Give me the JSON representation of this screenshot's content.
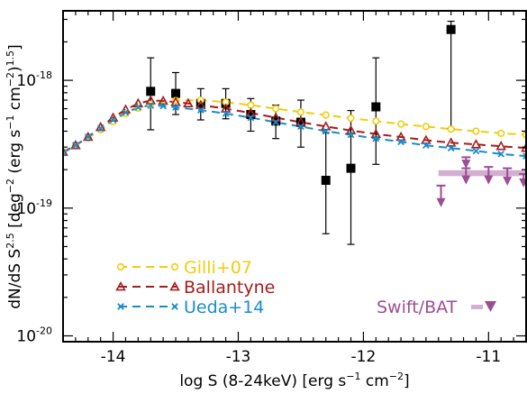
{
  "chart_data": {
    "type": "scatter",
    "xlabel_parts": [
      "log S (8-24keV) [erg s",
      "−1",
      " cm",
      "−2",
      "]"
    ],
    "ylabel_parts": [
      "dN/dS S",
      "2.5",
      " [deg",
      "−2",
      " (erg s",
      "−1",
      " cm",
      "−2",
      ")",
      "1.5",
      "]"
    ],
    "xlim": [
      -14.4,
      -10.7
    ],
    "ylim": [
      9e-21,
      3.5e-18
    ],
    "yscale": "log",
    "x_ticks": [
      -14,
      -13,
      -12,
      -11
    ],
    "x_tick_labels": [
      "-14",
      "-13",
      "-12",
      "-11"
    ],
    "y_tick_labels": [
      {
        "value": 1e-18,
        "base": "10",
        "exp": "-18"
      },
      {
        "value": 1e-19,
        "base": "10",
        "exp": "-19"
      },
      {
        "value": 1e-20,
        "base": "10",
        "exp": "-20"
      }
    ],
    "series": [
      {
        "name": "Gilli+07",
        "color": "#f2cc0c",
        "marker": "circle",
        "x": [
          -14.4,
          -14.3,
          -14.2,
          -14.1,
          -14.0,
          -13.9,
          -13.8,
          -13.7,
          -13.5,
          -13.3,
          -13.1,
          -12.9,
          -12.7,
          -12.5,
          -12.3,
          -12.1,
          -11.9,
          -11.7,
          -11.5,
          -11.3,
          -11.1,
          -10.9,
          -10.7
        ],
        "y": [
          2.75e-19,
          3.1e-19,
          3.55e-19,
          4.1e-19,
          4.75e-19,
          5.5e-19,
          6.05e-19,
          6.5e-19,
          6.95e-19,
          7e-19,
          6.75e-19,
          6.4e-19,
          6e-19,
          5.65e-19,
          5.35e-19,
          5.05e-19,
          4.8e-19,
          4.55e-19,
          4.35e-19,
          4.15e-19,
          4e-19,
          3.85e-19,
          3.75e-19
        ]
      },
      {
        "name": "Ballantyne",
        "color": "#a61c1c",
        "marker": "triangle",
        "x": [
          -14.4,
          -14.3,
          -14.2,
          -14.1,
          -14.0,
          -13.9,
          -13.8,
          -13.7,
          -13.6,
          -13.5,
          -13.4,
          -13.3,
          -13.1,
          -12.9,
          -12.7,
          -12.5,
          -12.3,
          -12.1,
          -11.9,
          -11.7,
          -11.5,
          -11.3,
          -11.1,
          -10.9,
          -10.7
        ],
        "y": [
          2.75e-19,
          3.1e-19,
          3.6e-19,
          4.3e-19,
          5.1e-19,
          5.9e-19,
          6.6e-19,
          6.95e-19,
          6.9e-19,
          6.75e-19,
          6.6e-19,
          6.4e-19,
          6e-19,
          5.55e-19,
          5.1e-19,
          4.7e-19,
          4.35e-19,
          4.05e-19,
          3.8e-19,
          3.6e-19,
          3.4e-19,
          3.25e-19,
          3.15e-19,
          3.05e-19,
          2.95e-19
        ]
      },
      {
        "name": "Ueda+14",
        "color": "#1a8ccc",
        "marker": "cross",
        "x": [
          -14.4,
          -14.3,
          -14.2,
          -14.1,
          -14.0,
          -13.9,
          -13.8,
          -13.7,
          -13.6,
          -13.5,
          -13.3,
          -13.1,
          -12.9,
          -12.7,
          -12.5,
          -12.3,
          -12.1,
          -11.9,
          -11.7,
          -11.5,
          -11.3,
          -11.1,
          -10.9,
          -10.7
        ],
        "y": [
          2.7e-19,
          3.1e-19,
          3.6e-19,
          4.2e-19,
          4.9e-19,
          5.6e-19,
          6.15e-19,
          6.35e-19,
          6.3e-19,
          6.15e-19,
          5.85e-19,
          5.5e-19,
          5.1e-19,
          4.7e-19,
          4.35e-19,
          4e-19,
          3.75e-19,
          3.5e-19,
          3.3e-19,
          3.1e-19,
          2.95e-19,
          2.8e-19,
          2.65e-19,
          2.55e-19
        ]
      }
    ],
    "measurements": {
      "color": "#000000",
      "points": [
        {
          "x": -13.7,
          "y": 8.2e-19,
          "lo": 4.1e-19,
          "hi": 1.5e-18
        },
        {
          "x": -13.5,
          "y": 7.9e-19,
          "lo": 5.4e-19,
          "hi": 1.15e-18
        },
        {
          "x": -13.3,
          "y": 6.6e-19,
          "lo": 4.9e-19,
          "hi": 8.6e-19
        },
        {
          "x": -13.1,
          "y": 6.6e-19,
          "lo": 5e-19,
          "hi": 8.6e-19
        },
        {
          "x": -12.9,
          "y": 5.4e-19,
          "lo": 4e-19,
          "hi": 7.2e-19
        },
        {
          "x": -12.7,
          "y": 4.8e-19,
          "lo": 3.5e-19,
          "hi": 6.4e-19
        },
        {
          "x": -12.5,
          "y": 4.7e-19,
          "lo": 3e-19,
          "hi": 7e-19
        },
        {
          "x": -12.3,
          "y": 1.65e-19,
          "lo": 6.3e-20,
          "hi": 3.9e-19
        },
        {
          "x": -12.1,
          "y": 2.05e-19,
          "lo": 5.2e-20,
          "hi": 5.8e-19
        },
        {
          "x": -11.9,
          "y": 6.2e-19,
          "lo": 2.2e-19,
          "hi": 1.5e-18
        },
        {
          "x": -11.3,
          "y": 2.5e-18,
          "lo": 4.2e-19,
          "hi": 2.9e-18
        }
      ]
    },
    "swift_bat": {
      "name": "Swift/BAT",
      "color": "#9c4d94",
      "band_color": "#d2aed0",
      "band_y": [
        1.78e-19,
        1.98e-19
      ],
      "band_x": [
        -11.4,
        -10.7
      ],
      "upper_limits": [
        {
          "x": -11.38,
          "y": 1.5e-19,
          "lo": 1.05e-19
        },
        {
          "x": -11.18,
          "y": 2.5e-19,
          "lo": 2.1e-19
        },
        {
          "x": -11.18,
          "y": 2.05e-19,
          "lo": 1.58e-19
        },
        {
          "x": -11.0,
          "y": 2.1e-19,
          "lo": 1.58e-19
        },
        {
          "x": -10.85,
          "y": 2.05e-19,
          "lo": 1.55e-19
        },
        {
          "x": -10.72,
          "y": 1.85e-19,
          "lo": 1.5e-19
        }
      ]
    },
    "legend": {
      "placement": "bottom-left",
      "entries": [
        "Gilli+07",
        "Ballantyne",
        "Ueda+14"
      ],
      "swift_label": "Swift/BAT"
    }
  }
}
